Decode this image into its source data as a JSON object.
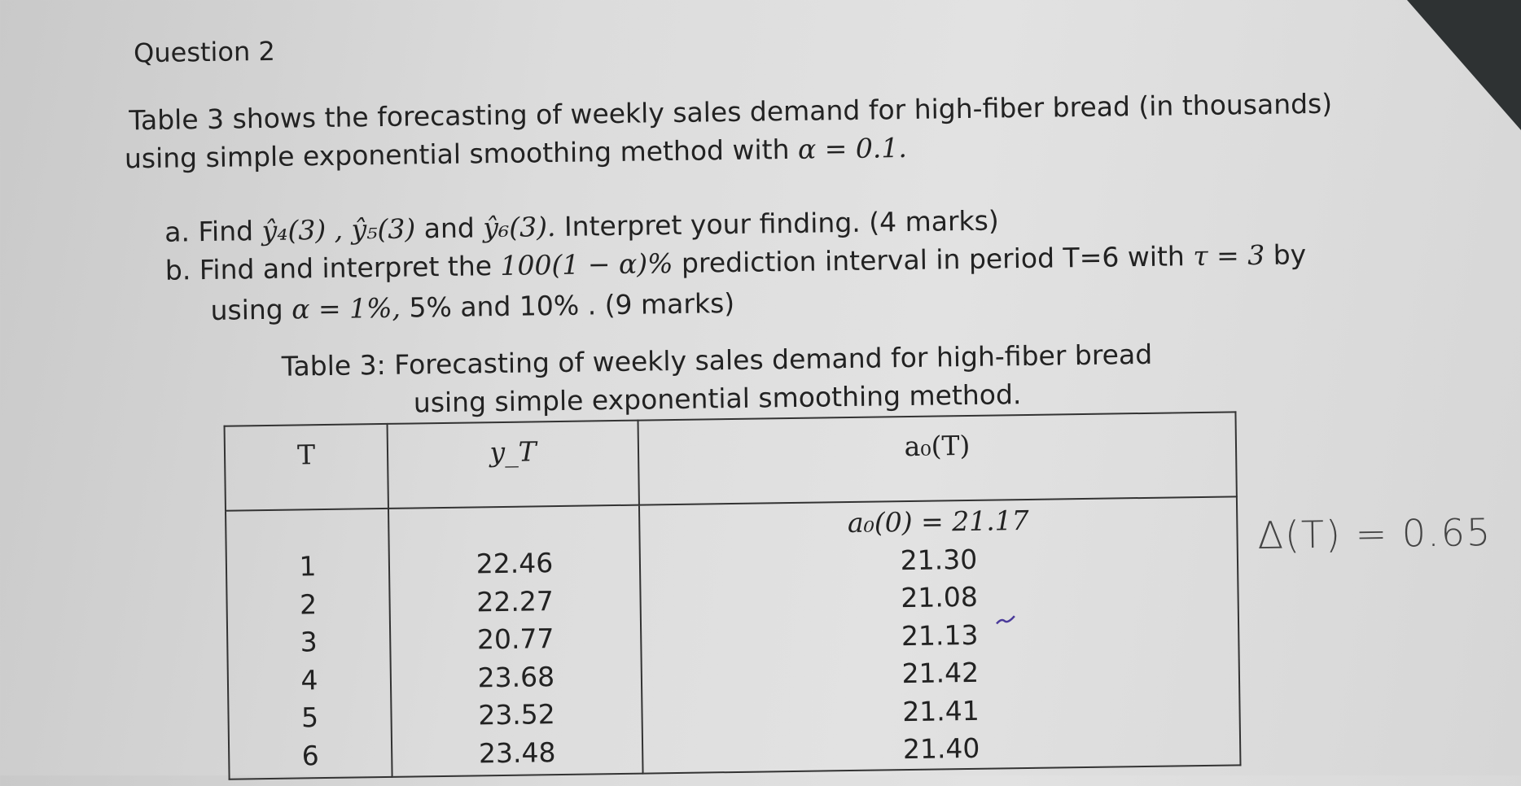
{
  "question_title": "Question 2",
  "intro": {
    "line1": "Table 3 shows the forecasting of weekly sales demand for high-fiber bread (in thousands)",
    "line2_text": "using simple exponential smoothing method with",
    "line2_math": "α = 0.1."
  },
  "parts": [
    {
      "label": "a.",
      "text_1": "Find",
      "math_1": "ŷ₄(3) , ŷ₅(3)",
      "text_2": "and",
      "math_2": "ŷ₆(3).",
      "text_3": "Interpret your finding. (4 marks)"
    },
    {
      "label": "b.",
      "text_1": "Find and interpret the",
      "math_1": "100(1 − α)%",
      "text_2": "prediction interval in period T=6 with",
      "math_2": "τ = 3",
      "text_3": "by",
      "line2_text_1": "using",
      "line2_math": "α = 1%,",
      "line2_text_2": "5% and 10% . (9 marks)"
    }
  ],
  "table": {
    "caption_line1": "Table 3: Forecasting of weekly sales demand for high-fiber bread",
    "caption_line2": "using simple exponential smoothing method.",
    "headers": [
      "T",
      "y_T",
      "a₀(T)"
    ],
    "initial": "a₀(0) = 21.17",
    "rows": [
      {
        "T": "1",
        "y": "22.46",
        "a0": "21.30"
      },
      {
        "T": "2",
        "y": "22.27",
        "a0": "21.08"
      },
      {
        "T": "3",
        "y": "20.77",
        "a0": "21.13"
      },
      {
        "T": "4",
        "y": "23.68",
        "a0": "21.42"
      },
      {
        "T": "5",
        "y": "23.52",
        "a0": "21.41"
      },
      {
        "T": "6",
        "y": "23.48",
        "a0": "21.40"
      }
    ]
  },
  "handwritten_note": "Δ(T) = 0.65",
  "colors": {
    "paper": "#dcdcdc",
    "ink": "#222222",
    "pen_mark": "#4a3a9a"
  }
}
